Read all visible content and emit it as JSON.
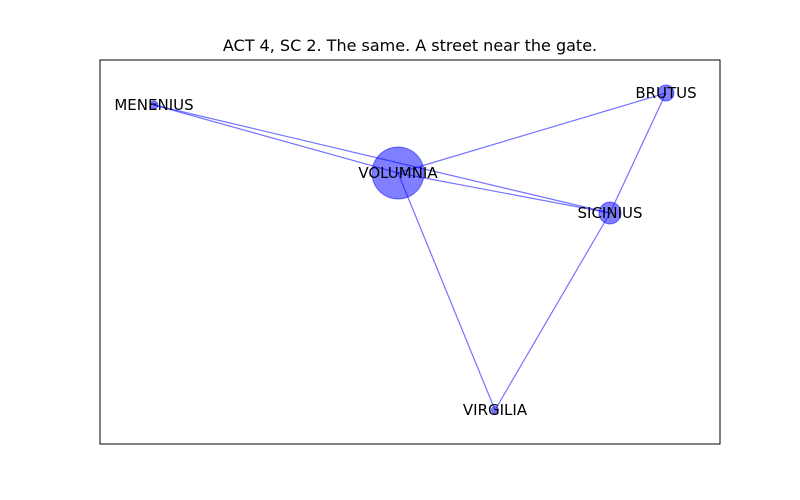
{
  "title": "ACT 4, SC 2. The same. A  street near the gate.",
  "colors": {
    "node": "#0000ff",
    "edge": "#0000ff",
    "frame": "#000000"
  },
  "graph": {
    "nodes": [
      {
        "id": "VOLUMNIA",
        "label": "VOLUMNIA"
      },
      {
        "id": "MENENIUS",
        "label": "MENENIUS"
      },
      {
        "id": "BRUTUS",
        "label": "BRUTUS"
      },
      {
        "id": "SICINIUS",
        "label": "SICINIUS"
      },
      {
        "id": "VIRGILIA",
        "label": "VIRGILIA"
      }
    ],
    "edges": [
      {
        "source": "VOLUMNIA",
        "target": "MENENIUS"
      },
      {
        "source": "VOLUMNIA",
        "target": "BRUTUS"
      },
      {
        "source": "VOLUMNIA",
        "target": "SICINIUS"
      },
      {
        "source": "VOLUMNIA",
        "target": "VIRGILIA"
      },
      {
        "source": "MENENIUS",
        "target": "SICINIUS"
      },
      {
        "source": "BRUTUS",
        "target": "SICINIUS"
      },
      {
        "source": "SICINIUS",
        "target": "VIRGILIA"
      }
    ]
  }
}
